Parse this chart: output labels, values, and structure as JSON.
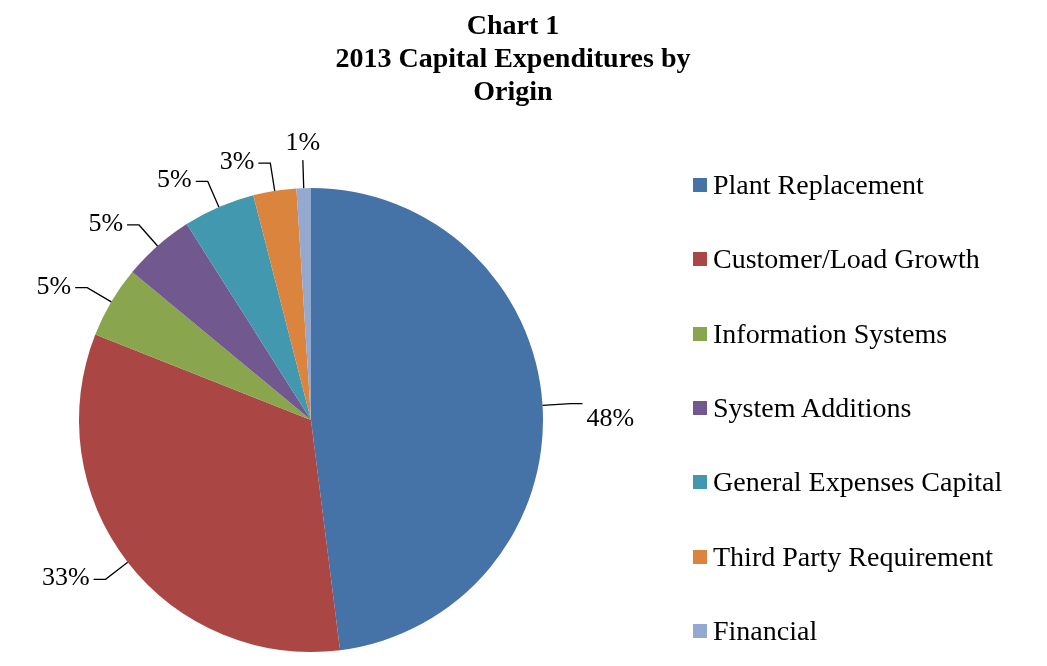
{
  "chart_data": {
    "type": "pie",
    "title": "Chart 1",
    "subtitle": "2013 Capital Expenditures by Origin",
    "categories": [
      "Plant Replacement",
      "Customer/Load Growth",
      "Information Systems",
      "System Additions",
      "General Expenses Capital",
      "Third Party Requirement",
      "Financial"
    ],
    "values": [
      48,
      33,
      5,
      5,
      5,
      3,
      1
    ],
    "value_labels": [
      "48%",
      "33%",
      "5%",
      "5%",
      "5%",
      "3%",
      "1%"
    ],
    "colors": [
      "#4572a7",
      "#aa4643",
      "#89a54e",
      "#71588f",
      "#4198af",
      "#db843d",
      "#93a9cf"
    ],
    "legend": "right"
  }
}
